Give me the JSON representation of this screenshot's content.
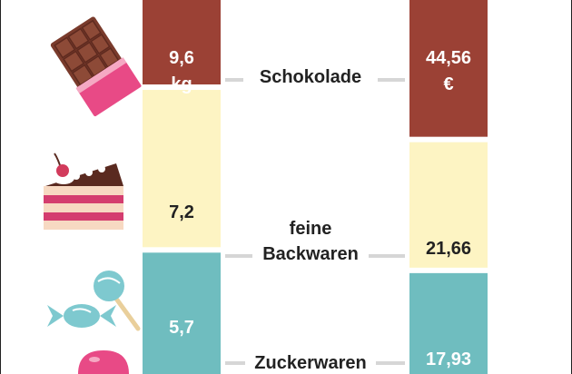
{
  "chart_data": {
    "type": "bar",
    "categories": [
      "Schokolade",
      "feine Backwaren",
      "Zuckerwaren"
    ],
    "series": [
      {
        "values": [
          9.6,
          7.2,
          5.7
        ],
        "labels": [
          "9,6 kg",
          "7,2",
          "5,7"
        ]
      },
      {
        "values": [
          44.56,
          21.66,
          17.93
        ],
        "labels": [
          "44,56 €",
          "21,66",
          "17,93"
        ]
      }
    ],
    "category_labels": [
      [
        "Schokolade"
      ],
      [
        "feine",
        "Backwaren"
      ],
      [
        "Zuckerwaren"
      ]
    ],
    "colors": {
      "Schokolade": "#9b4135",
      "feine Backwaren": "#fdf4c3",
      "Zuckerwaren": "#6fbdbf",
      "connector": "#d6d6d6"
    },
    "icons": [
      "chocolate-bar-icon",
      "cake-slice-icon",
      "wrapped-candy-icon",
      "lollipop-icon",
      "gumdrop-icon"
    ]
  }
}
